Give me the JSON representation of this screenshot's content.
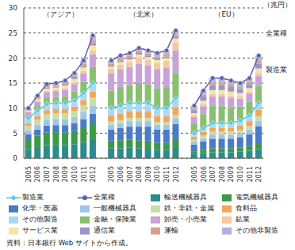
{
  "chart_data": {
    "type": "bar",
    "stacked": true,
    "grid": true,
    "y_label": "（兆円）",
    "ylim": [
      0,
      30
    ],
    "yticks": [
      0,
      5,
      10,
      15,
      20,
      25,
      30
    ],
    "panels": [
      {
        "title": "（アジア）",
        "categories": [
          "2005",
          "2006",
          "2007",
          "2008",
          "2009",
          "2010",
          "2011",
          "2012"
        ]
      },
      {
        "title": "（北米）",
        "categories": [
          "2005",
          "2006",
          "2007",
          "2008",
          "2009",
          "2010",
          "2011",
          "2012"
        ]
      },
      {
        "title": "（EU）",
        "categories": [
          "2005",
          "2006",
          "2007",
          "2008",
          "2009",
          "2010",
          "2011",
          "2012"
        ]
      }
    ],
    "series": [
      {
        "name": "製造業",
        "type": "line",
        "marker": "diamond",
        "color": "#5bc8e0",
        "values": [
          [
            8,
            9.5,
            10.8,
            11,
            11,
            11.5,
            13,
            15
          ],
          [
            10,
            10.5,
            11,
            11,
            11,
            10,
            10,
            12
          ],
          [
            5,
            6,
            7,
            7,
            7,
            7.5,
            8.5,
            11
          ]
        ]
      },
      {
        "name": "全業種",
        "type": "line",
        "marker": "circle",
        "color": "#5a5fb0",
        "values": [
          [
            10,
            12.5,
            14.8,
            15,
            15.5,
            17,
            19.5,
            24.5
          ],
          [
            19.5,
            20.5,
            21,
            22,
            21.5,
            21,
            21.5,
            25.5
          ],
          [
            10.5,
            13.5,
            16,
            16,
            15.5,
            15,
            16,
            20.5
          ]
        ]
      },
      {
        "name": "輸送機械器具",
        "type": "bar",
        "color": "#2e8b8b",
        "values": [
          [
            1.8,
            2.2,
            2.6,
            2.7,
            2.6,
            2.8,
            3.2,
            3.8
          ],
          [
            2.0,
            2.0,
            2.1,
            2.0,
            1.9,
            1.7,
            1.7,
            2.2
          ],
          [
            0.8,
            1.0,
            1.2,
            1.2,
            1.2,
            1.3,
            1.5,
            1.8
          ]
        ]
      },
      {
        "name": "電気機械器具",
        "type": "bar",
        "color": "#3a9a4a",
        "values": [
          [
            2.0,
            2.3,
            2.5,
            2.5,
            2.5,
            2.6,
            2.8,
            3.0
          ],
          [
            1.5,
            1.6,
            1.6,
            1.6,
            1.6,
            1.4,
            1.4,
            1.6
          ],
          [
            0.6,
            0.7,
            0.8,
            0.8,
            0.8,
            0.8,
            0.9,
            1.2
          ]
        ]
      },
      {
        "name": "化学・医薬",
        "type": "bar",
        "color": "#4a7bc4",
        "values": [
          [
            1.0,
            1.2,
            1.4,
            1.4,
            1.5,
            1.6,
            1.8,
            2.1
          ],
          [
            2.2,
            2.4,
            2.6,
            2.7,
            2.8,
            2.6,
            2.6,
            3.0
          ],
          [
            1.3,
            1.6,
            1.9,
            1.9,
            1.9,
            2.1,
            2.4,
            3.4
          ]
        ]
      },
      {
        "name": "一般機械器具",
        "type": "bar",
        "color": "#9fc5e8",
        "values": [
          [
            0.8,
            1.0,
            1.2,
            1.2,
            1.2,
            1.2,
            1.4,
            1.6
          ],
          [
            1.0,
            1.0,
            1.1,
            1.1,
            1.1,
            1.0,
            1.0,
            1.2
          ],
          [
            0.6,
            0.7,
            0.8,
            0.8,
            0.8,
            0.8,
            0.9,
            1.1
          ]
        ]
      },
      {
        "name": "鉄・非鉄・金属",
        "type": "bar",
        "color": "#c5e0a5",
        "values": [
          [
            0.8,
            1.0,
            1.1,
            1.2,
            1.2,
            1.2,
            1.4,
            1.6
          ],
          [
            0.6,
            0.6,
            0.6,
            0.6,
            0.6,
            0.5,
            0.5,
            0.6
          ],
          [
            0.4,
            0.5,
            0.6,
            0.6,
            0.6,
            0.6,
            0.7,
            0.9
          ]
        ]
      },
      {
        "name": "食料品",
        "type": "bar",
        "color": "#f2a65a",
        "values": [
          [
            0.6,
            0.7,
            0.8,
            0.8,
            0.8,
            0.9,
            1.0,
            1.2
          ],
          [
            1.2,
            1.3,
            1.3,
            1.3,
            1.3,
            1.2,
            1.2,
            1.5
          ],
          [
            0.6,
            0.7,
            0.8,
            0.8,
            0.8,
            0.9,
            1.0,
            1.3
          ]
        ]
      },
      {
        "name": "その他製造",
        "type": "bar",
        "color": "#a9d9f0",
        "values": [
          [
            1.0,
            1.1,
            1.2,
            1.2,
            1.2,
            1.2,
            1.4,
            1.7
          ],
          [
            1.5,
            1.6,
            1.7,
            1.7,
            1.7,
            1.6,
            1.6,
            1.9
          ],
          [
            0.7,
            0.8,
            0.9,
            0.9,
            0.9,
            1.0,
            1.1,
            1.3
          ]
        ]
      },
      {
        "name": "金融・保険業",
        "type": "bar",
        "color": "#88c070",
        "values": [
          [
            0.6,
            0.9,
            1.2,
            1.2,
            1.4,
            1.8,
            2.2,
            3.2
          ],
          [
            3.5,
            3.7,
            3.6,
            4.0,
            3.8,
            4.0,
            4.2,
            5.0
          ],
          [
            2.0,
            2.8,
            3.4,
            3.4,
            3.2,
            2.8,
            2.8,
            3.4
          ]
        ]
      },
      {
        "name": "卸売・小売業",
        "type": "bar",
        "color": "#c8a2d8",
        "values": [
          [
            0.6,
            0.9,
            1.2,
            1.2,
            1.3,
            1.5,
            1.7,
            2.5
          ],
          [
            3.5,
            3.6,
            3.6,
            3.9,
            3.7,
            3.8,
            3.9,
            4.5
          ],
          [
            1.2,
            1.6,
            1.9,
            1.9,
            1.8,
            1.6,
            1.6,
            2.0
          ]
        ]
      },
      {
        "name": "鉱業",
        "type": "bar",
        "color": "#f7c6a3",
        "values": [
          [
            0.1,
            0.2,
            0.3,
            0.3,
            0.3,
            0.4,
            0.5,
            0.8
          ],
          [
            0.8,
            0.9,
            1.0,
            1.2,
            1.1,
            1.2,
            1.3,
            1.6
          ],
          [
            0.3,
            0.4,
            0.5,
            0.5,
            0.5,
            0.4,
            0.4,
            0.6
          ]
        ]
      },
      {
        "name": "サービス業",
        "type": "bar",
        "color": "#f3e6a5",
        "values": [
          [
            0.2,
            0.3,
            0.4,
            0.4,
            0.5,
            0.6,
            0.7,
            1.0
          ],
          [
            0.5,
            0.5,
            0.5,
            0.6,
            0.6,
            0.6,
            0.6,
            0.8
          ],
          [
            0.5,
            0.7,
            0.8,
            0.8,
            0.8,
            0.7,
            0.7,
            0.9
          ]
        ]
      },
      {
        "name": "通信業",
        "type": "bar",
        "color": "#9b95c9",
        "values": [
          [
            0.1,
            0.1,
            0.2,
            0.2,
            0.2,
            0.3,
            0.3,
            0.5
          ],
          [
            0.3,
            0.3,
            0.3,
            0.3,
            0.3,
            0.3,
            0.3,
            0.3
          ],
          [
            0.6,
            0.8,
            1.0,
            1.0,
            0.9,
            0.8,
            0.8,
            1.0
          ]
        ]
      },
      {
        "name": "運輸",
        "type": "bar",
        "color": "#d8a08a",
        "values": [
          [
            0.2,
            0.3,
            0.3,
            0.3,
            0.3,
            0.4,
            0.5,
            0.6
          ],
          [
            0.3,
            0.4,
            0.4,
            0.4,
            0.4,
            0.4,
            0.5,
            0.5
          ],
          [
            0.3,
            0.4,
            0.5,
            0.5,
            0.5,
            0.4,
            0.4,
            0.5
          ]
        ]
      },
      {
        "name": "その他非製造",
        "type": "bar",
        "color": "#b3b3d9",
        "values": [
          [
            0.2,
            0.3,
            0.4,
            0.4,
            0.5,
            0.5,
            0.6,
            0.9
          ],
          [
            0.6,
            0.6,
            0.6,
            0.6,
            0.6,
            0.7,
            0.7,
            0.8
          ],
          [
            0.6,
            0.8,
            0.9,
            0.9,
            0.8,
            0.8,
            0.8,
            1.1
          ]
        ]
      }
    ],
    "annotations": [
      "全業種",
      "製造業"
    ],
    "source": "資料：日本銀行 Web サイトから作成。"
  }
}
